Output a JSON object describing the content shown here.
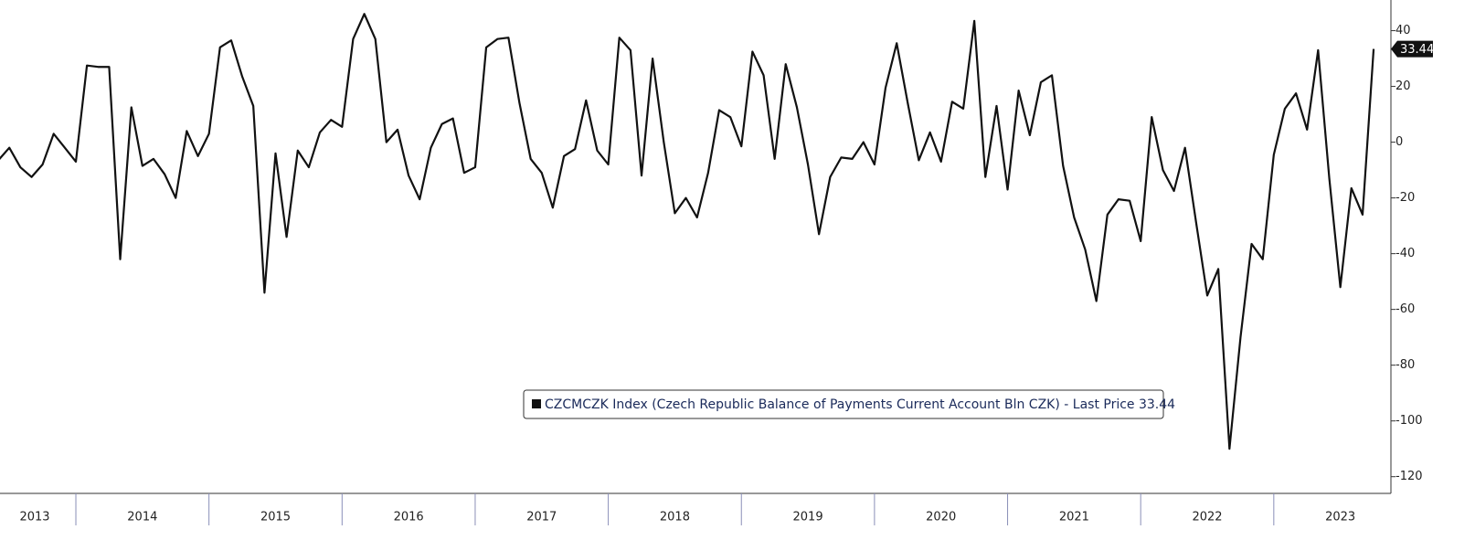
{
  "chart_data": {
    "type": "line",
    "series": [
      {
        "name": "CZCMCZK Index (Czech Republic Balance of Payments Current Account Bln CZK) - Last Price 33.44",
        "color": "#111111",
        "values": [
          -6.5,
          -2,
          -9,
          -12.5,
          -8,
          3,
          -2,
          -7,
          27.5,
          27,
          27,
          -42,
          12.5,
          -8.5,
          -6,
          -11.5,
          -20,
          4,
          -5,
          3,
          34,
          36.5,
          23.5,
          13,
          -54,
          -4,
          -34,
          -3,
          -9,
          3.5,
          8,
          5.5,
          37,
          46,
          37,
          0,
          4.5,
          -12,
          -20.5,
          -2,
          6.5,
          8.5,
          -11,
          -9,
          34,
          37,
          37.5,
          14,
          -6,
          -11,
          -23.5,
          -5,
          -2.5,
          15,
          -3,
          -8,
          37.5,
          33,
          -12,
          30,
          0,
          -25.5,
          -20,
          -27,
          -11,
          11.5,
          9,
          -1.5,
          32.5,
          24,
          -6,
          28,
          12.5,
          -8,
          -33,
          -12.5,
          -5.5,
          -6,
          0,
          -8,
          19.5,
          35.5,
          14,
          -6.5,
          3.5,
          -7,
          14.5,
          12,
          43.5,
          -12.5,
          13,
          -17,
          18.5,
          2.5,
          21.5,
          24,
          -8.5,
          -27,
          -38.5,
          -57,
          -26,
          -20.5,
          -21,
          -35.5,
          9,
          -10,
          -17.5,
          -2,
          -29,
          -55,
          -45.5,
          -110,
          -70,
          -36.5,
          -42,
          -4.5,
          12,
          17.5,
          4.5,
          33,
          -13,
          -52,
          -16.5,
          -26,
          33.44
        ]
      }
    ],
    "x": [
      2013.417,
      2013.5,
      2013.583,
      2013.667,
      2013.75,
      2013.833,
      2013.917,
      2014,
      2014.083,
      2014.167,
      2014.25,
      2014.333,
      2014.417,
      2014.5,
      2014.583,
      2014.667,
      2014.75,
      2014.833,
      2014.917,
      2015,
      2015.083,
      2015.167,
      2015.25,
      2015.333,
      2015.417,
      2015.5,
      2015.583,
      2015.667,
      2015.75,
      2015.833,
      2015.917,
      2016,
      2016.083,
      2016.167,
      2016.25,
      2016.333,
      2016.417,
      2016.5,
      2016.583,
      2016.667,
      2016.75,
      2016.833,
      2016.917,
      2017,
      2017.083,
      2017.167,
      2017.25,
      2017.333,
      2017.417,
      2017.5,
      2017.583,
      2017.667,
      2017.75,
      2017.833,
      2017.917,
      2018,
      2018.083,
      2018.167,
      2018.25,
      2018.333,
      2018.417,
      2018.5,
      2018.583,
      2018.667,
      2018.75,
      2018.833,
      2018.917,
      2019,
      2019.083,
      2019.167,
      2019.25,
      2019.333,
      2019.417,
      2019.5,
      2019.583,
      2019.667,
      2019.75,
      2019.833,
      2019.917,
      2020,
      2020.083,
      2020.167,
      2020.25,
      2020.333,
      2020.417,
      2020.5,
      2020.583,
      2020.667,
      2020.75,
      2020.833,
      2020.917,
      2021,
      2021.083,
      2021.167,
      2021.25,
      2021.333,
      2021.417,
      2021.5,
      2021.583,
      2021.667,
      2021.75,
      2021.833,
      2021.917,
      2022,
      2022.083,
      2022.167,
      2022.25,
      2022.333,
      2022.417,
      2022.5,
      2022.583,
      2022.667,
      2022.75,
      2022.833,
      2022.917,
      2023,
      2023.083,
      2023.167,
      2023.25,
      2023.333,
      2023.417,
      2023.5,
      2023.583,
      2023.667,
      2023.75
    ],
    "xlim": [
      2013.43,
      2023.88
    ],
    "xticks": [
      2013,
      2014,
      2015,
      2016,
      2017,
      2018,
      2019,
      2020,
      2021,
      2022,
      2023
    ],
    "ylim": [
      -126,
      51
    ],
    "yticks": [
      40,
      20,
      0,
      -20,
      -40,
      -60,
      -80,
      -100,
      -120
    ],
    "y_axis_side": "right",
    "legend": "bottom-center"
  }
}
